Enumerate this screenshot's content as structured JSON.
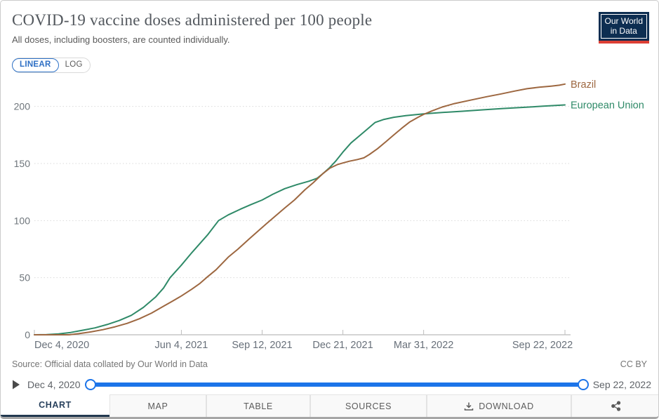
{
  "header": {
    "title": "COVID-19 vaccine doses administered per 100 people",
    "subtitle": "All doses, including boosters, are counted individually."
  },
  "logo": {
    "line1": "Our World",
    "line2": "in Data",
    "bg_color": "#0d2e51",
    "bar_color": "#dc3f34"
  },
  "scale_toggle": {
    "linear_label": "LINEAR",
    "log_label": "LOG",
    "selected": "LINEAR",
    "accent_color": "#2e6fc4"
  },
  "chart_data": {
    "type": "line",
    "title": "COVID-19 vaccine doses administered per 100 people",
    "subtitle": "All doses, including boosters, are counted individually.",
    "xlabel": "",
    "ylabel": "",
    "ylim": [
      0,
      225
    ],
    "yticks": [
      0,
      50,
      100,
      150,
      200
    ],
    "grid": "dotted-horizontal",
    "legend_position": "end-of-line",
    "x_domain_days": [
      0,
      657
    ],
    "x_ticks": [
      {
        "label": "Dec 4, 2020",
        "day": 0
      },
      {
        "label": "Jun 4, 2021",
        "day": 182
      },
      {
        "label": "Sep 12, 2021",
        "day": 282
      },
      {
        "label": "Dec 21, 2021",
        "day": 382
      },
      {
        "label": "Mar 31, 2022",
        "day": 482
      },
      {
        "label": "Sep 22, 2022",
        "day": 657
      }
    ],
    "series": [
      {
        "name": "European Union",
        "color": "#2f8a68",
        "points": [
          [
            0,
            0
          ],
          [
            15,
            0.1
          ],
          [
            30,
            0.8
          ],
          [
            45,
            2
          ],
          [
            60,
            4
          ],
          [
            75,
            6
          ],
          [
            90,
            9
          ],
          [
            105,
            12.5
          ],
          [
            120,
            17
          ],
          [
            135,
            24
          ],
          [
            150,
            33
          ],
          [
            160,
            41
          ],
          [
            168,
            50
          ],
          [
            182,
            61
          ],
          [
            195,
            72
          ],
          [
            205,
            80
          ],
          [
            215,
            88
          ],
          [
            228,
            100
          ],
          [
            240,
            105
          ],
          [
            255,
            110
          ],
          [
            268,
            114
          ],
          [
            282,
            118
          ],
          [
            295,
            123
          ],
          [
            310,
            128
          ],
          [
            325,
            131.5
          ],
          [
            340,
            134.5
          ],
          [
            350,
            137
          ],
          [
            357,
            141
          ],
          [
            365,
            146
          ],
          [
            373,
            152
          ],
          [
            382,
            160
          ],
          [
            392,
            168
          ],
          [
            402,
            174
          ],
          [
            412,
            180
          ],
          [
            422,
            186
          ],
          [
            432,
            188.5
          ],
          [
            445,
            190.5
          ],
          [
            460,
            192
          ],
          [
            482,
            193.5
          ],
          [
            505,
            194.7
          ],
          [
            530,
            195.8
          ],
          [
            555,
            197
          ],
          [
            580,
            198.2
          ],
          [
            605,
            199.2
          ],
          [
            630,
            200.2
          ],
          [
            657,
            201.3
          ]
        ]
      },
      {
        "name": "Brazil",
        "color": "#9d6740",
        "points": [
          [
            0,
            0
          ],
          [
            43,
            0
          ],
          [
            55,
            1
          ],
          [
            70,
            2.5
          ],
          [
            85,
            4.5
          ],
          [
            100,
            7
          ],
          [
            115,
            10
          ],
          [
            130,
            14
          ],
          [
            145,
            19
          ],
          [
            160,
            25
          ],
          [
            170,
            29
          ],
          [
            182,
            34
          ],
          [
            195,
            40
          ],
          [
            205,
            45
          ],
          [
            213,
            50
          ],
          [
            225,
            57
          ],
          [
            240,
            68
          ],
          [
            252,
            75
          ],
          [
            266,
            84
          ],
          [
            282,
            94
          ],
          [
            295,
            102
          ],
          [
            310,
            111
          ],
          [
            322,
            118
          ],
          [
            335,
            127
          ],
          [
            345,
            133
          ],
          [
            357,
            141
          ],
          [
            366,
            146
          ],
          [
            375,
            149
          ],
          [
            382,
            150.5
          ],
          [
            390,
            152
          ],
          [
            400,
            153.5
          ],
          [
            408,
            155
          ],
          [
            415,
            158
          ],
          [
            425,
            163
          ],
          [
            435,
            169
          ],
          [
            445,
            175
          ],
          [
            455,
            181
          ],
          [
            465,
            186.5
          ],
          [
            475,
            190.5
          ],
          [
            482,
            193
          ],
          [
            492,
            196
          ],
          [
            505,
            199.5
          ],
          [
            520,
            202.5
          ],
          [
            540,
            205.5
          ],
          [
            560,
            208.5
          ],
          [
            578,
            211
          ],
          [
            595,
            213.5
          ],
          [
            610,
            215.5
          ],
          [
            625,
            216.8
          ],
          [
            640,
            217.8
          ],
          [
            650,
            218.6
          ],
          [
            657,
            219.6
          ]
        ]
      }
    ]
  },
  "footer": {
    "source_text": "Source: Official data collated by Our World in Data",
    "license": "CC BY"
  },
  "timeline": {
    "start_label": "Dec 4, 2020",
    "end_label": "Sep 22, 2022",
    "track_color": "#1c74e9"
  },
  "tabs": [
    {
      "label": "CHART",
      "active": true
    },
    {
      "label": "MAP",
      "active": false
    },
    {
      "label": "TABLE",
      "active": false
    },
    {
      "label": "SOURCES",
      "active": false
    },
    {
      "label": "DOWNLOAD",
      "active": false,
      "icon": "download-icon"
    },
    {
      "label": "",
      "active": false,
      "icon": "share-icon"
    }
  ]
}
